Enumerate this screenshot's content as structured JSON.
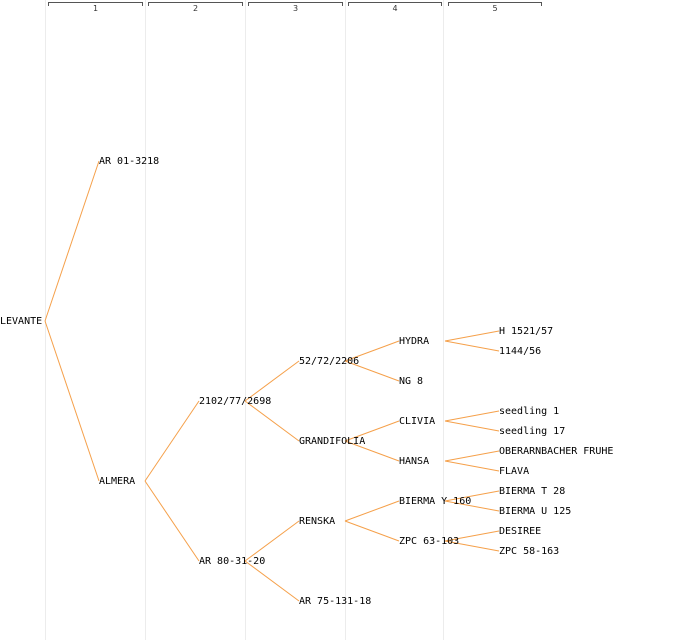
{
  "generations": [
    "1",
    "2",
    "3",
    "4",
    "5"
  ],
  "nodes": {
    "levante": "LEVANTE",
    "ar01": "AR 01-3218",
    "almera": "ALMERA",
    "n2102": "2102/77/2698",
    "ar80": "AR 80-31-20",
    "n5272": "52/72/2206",
    "grandifolia": "GRANDIFOLIA",
    "renska": "RENSKA",
    "ar75": "AR 75-131-18",
    "hydra": "HYDRA",
    "ng8": "NG 8",
    "clivia": "CLIVIA",
    "hansa": "HANSA",
    "bierma_y": "BIERMA Y 160",
    "zpc63": "ZPC 63-103",
    "h1521": "H 1521/57",
    "n1144": "1144/56",
    "seedling1": "seedling 1",
    "seedling17": "seedling 17",
    "oberarn": "OBERARNBACHER FRUHE",
    "flava": "FLAVA",
    "bierma_t": "BIERMA T 28",
    "bierma_u": "BIERMA U 125",
    "desiree": "DESIREE",
    "zpc58": "ZPC 58-163"
  },
  "colors": {
    "edge": "#f5a04a",
    "grid": "#ececec",
    "text": "#000000"
  }
}
